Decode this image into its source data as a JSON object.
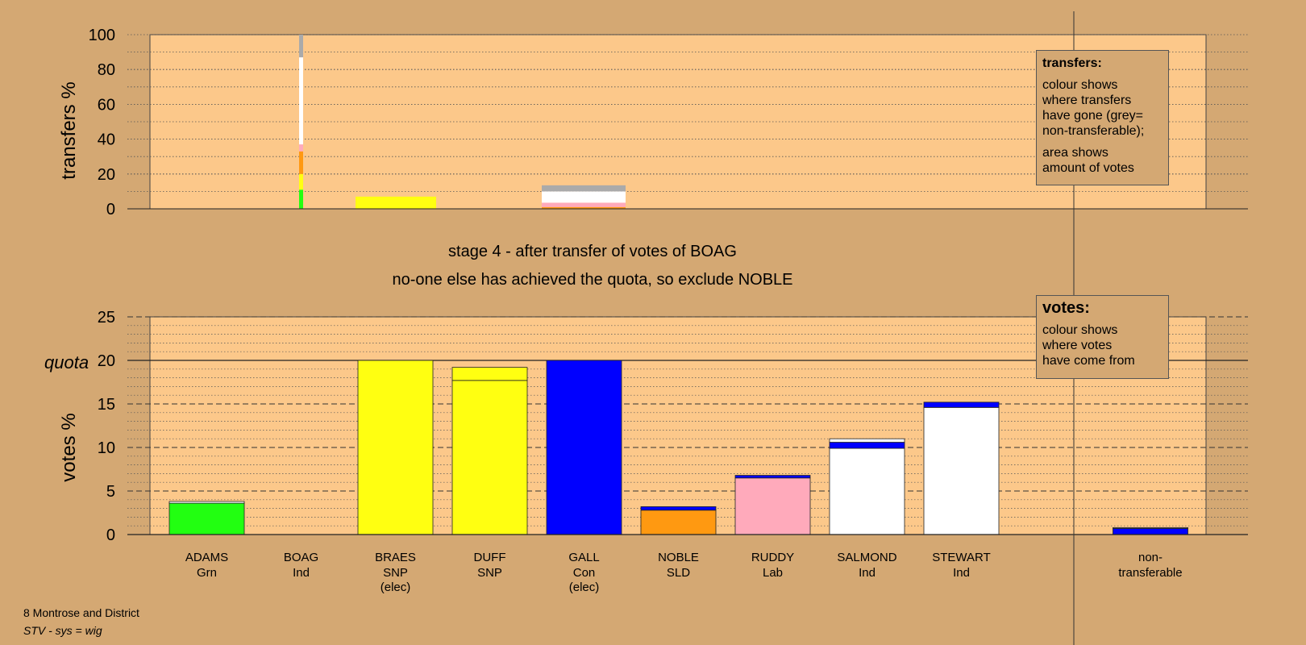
{
  "stage_title": "stage 4 - after transfer of votes of BOAG",
  "stage_subtitle": "no-one else has achieved the quota, so exclude NOBLE",
  "legend_transfers": {
    "title": "transfers:",
    "lines": [
      "colour shows",
      "where transfers",
      "have gone (grey=",
      "non-transferable);"
    ],
    "lines2": [
      "area shows",
      "amount of votes"
    ]
  },
  "legend_votes": {
    "title": "votes:",
    "lines": [
      "colour shows",
      "where votes",
      "have come from"
    ]
  },
  "footer": {
    "name": "8 Montrose and District",
    "system": "STV - sys = wig"
  },
  "colors": {
    "background": "#d4a873",
    "plot_bg": "#fcc88a",
    "Grn": "#22ff11",
    "SNP": "#ffff11",
    "Con": "#0000ff",
    "SLD": "#ff9911",
    "Lab": "#ffaabb",
    "Ind": "#ffffff",
    "nontransferable": "#aaaaaa"
  },
  "chart_data": [
    {
      "type": "bar",
      "name": "transfers",
      "ylabel": "transfers %",
      "ylim": [
        0,
        100
      ],
      "yticks": [
        0,
        20,
        40,
        60,
        80,
        100
      ],
      "grid": true,
      "columns": [
        {
          "candidate": "BOAG",
          "segments": [
            {
              "color": "Grn",
              "value": 11
            },
            {
              "color": "SNP",
              "value": 9
            },
            {
              "color": "SLD",
              "value": 13
            },
            {
              "color": "Lab",
              "value": 4
            },
            {
              "color": "Ind",
              "value": 50
            },
            {
              "color": "nontransferable",
              "value": 13
            }
          ]
        }
      ],
      "recipients": [
        {
          "candidate": "DUFF",
          "segments": [
            {
              "color": "SNP",
              "value": 7
            }
          ]
        },
        {
          "candidate": "SALMOND_STEWART",
          "segments": [
            {
              "color": "SLD",
              "value": 1
            },
            {
              "color": "Lab",
              "value": 2.5
            },
            {
              "color": "Ind",
              "value": 6.5
            },
            {
              "color": "nontransferable",
              "value": 3.5
            }
          ]
        }
      ]
    },
    {
      "type": "bar",
      "name": "votes",
      "ylabel": "votes %",
      "ylim": [
        0,
        25
      ],
      "yticks": [
        0,
        5,
        10,
        15,
        20,
        25
      ],
      "quota": 20,
      "quota_label": "quota",
      "grid": true,
      "bars": [
        {
          "name": "ADAMS",
          "party": "Grn",
          "elec": "",
          "segments": [
            {
              "color": "Grn",
              "value": 3.6
            },
            {
              "color": "Ind",
              "value": 0.2
            }
          ]
        },
        {
          "name": "BOAG",
          "party": "Ind",
          "elec": "",
          "segments": []
        },
        {
          "name": "BRAES",
          "party": "SNP",
          "elec": "(elec)",
          "segments": [
            {
              "color": "SNP",
              "value": 20
            }
          ]
        },
        {
          "name": "DUFF",
          "party": "SNP",
          "elec": "",
          "segments": [
            {
              "color": "SNP",
              "value": 17.7
            },
            {
              "color": "SNP",
              "value": 1.5
            }
          ]
        },
        {
          "name": "GALL",
          "party": "Con",
          "elec": "(elec)",
          "segments": [
            {
              "color": "Con",
              "value": 20
            }
          ]
        },
        {
          "name": "NOBLE",
          "party": "SLD",
          "elec": "",
          "segments": [
            {
              "color": "SLD",
              "value": 2.8
            },
            {
              "color": "Con",
              "value": 0.4
            }
          ]
        },
        {
          "name": "RUDDY",
          "party": "Lab",
          "elec": "",
          "segments": [
            {
              "color": "Lab",
              "value": 6.5
            },
            {
              "color": "Con",
              "value": 0.3
            }
          ]
        },
        {
          "name": "SALMOND",
          "party": "Ind",
          "elec": "",
          "segments": [
            {
              "color": "Ind",
              "value": 9.9
            },
            {
              "color": "Con",
              "value": 0.7
            },
            {
              "color": "Ind",
              "value": 0.4
            }
          ]
        },
        {
          "name": "STEWART",
          "party": "Ind",
          "elec": "",
          "segments": [
            {
              "color": "Ind",
              "value": 14.6
            },
            {
              "color": "Con",
              "value": 0.6
            }
          ]
        },
        {
          "name": "non-",
          "party": "transferable",
          "elec": "",
          "nontransferable": true,
          "segments": [
            {
              "color": "Con",
              "value": 0.7
            },
            {
              "color": "nontransferable",
              "value": 0.1
            }
          ]
        }
      ]
    }
  ]
}
